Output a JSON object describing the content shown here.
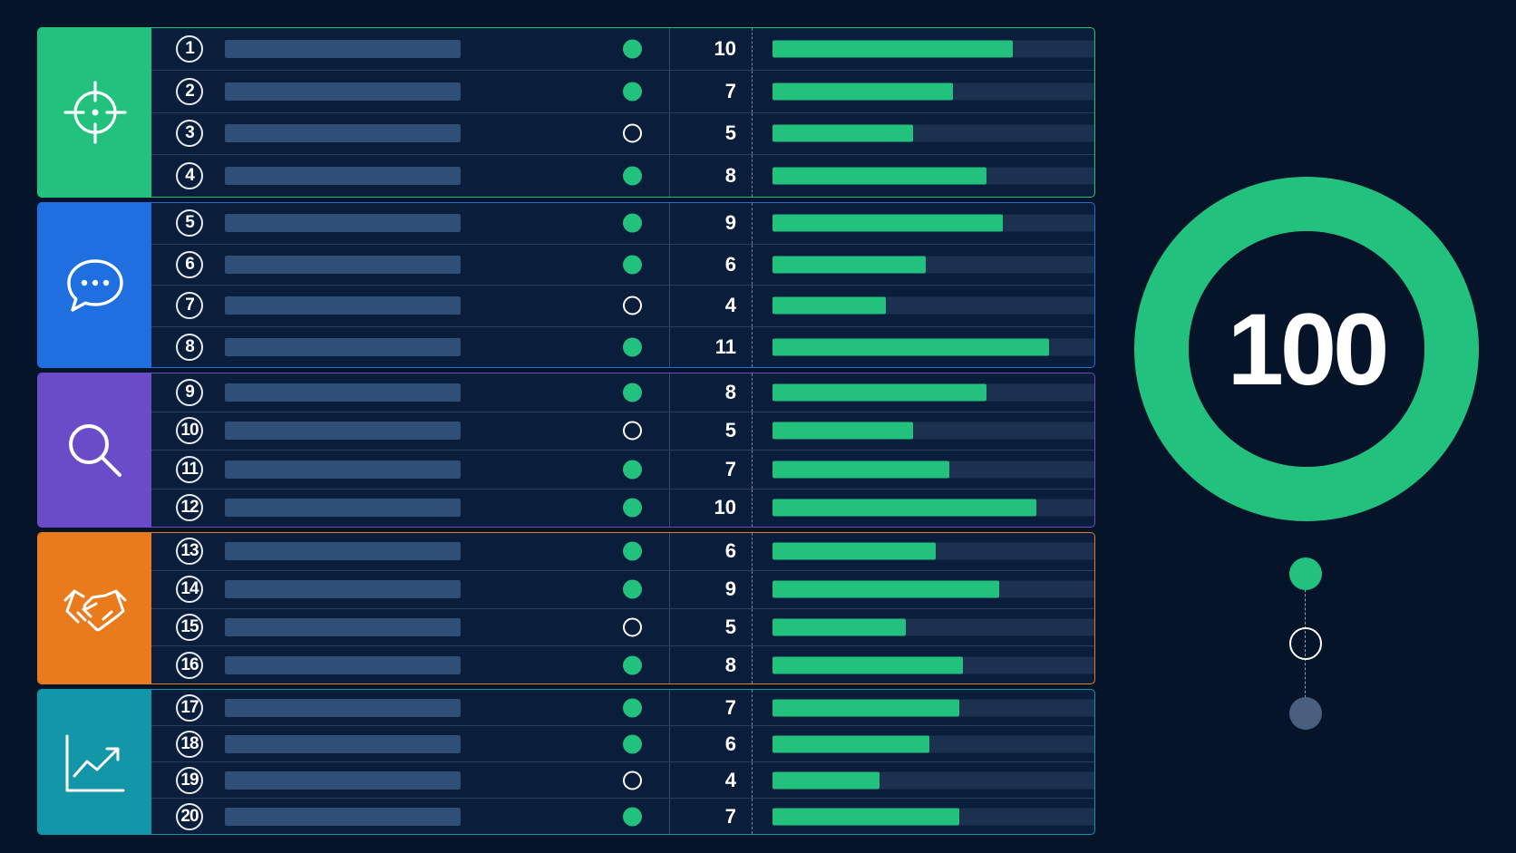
{
  "colors": {
    "background": "#06142a",
    "positive": "#22c27e",
    "groups": [
      "#22c27e",
      "#1f6fe0",
      "#6a4cc9",
      "#ea7b1c",
      "#1397a8"
    ]
  },
  "groups": [
    {
      "icon": "crosshair-icon",
      "rows": [
        {
          "num": "1",
          "active": true,
          "score": "10",
          "fill": 0.72
        },
        {
          "num": "2",
          "active": true,
          "score": "7",
          "fill": 0.54
        },
        {
          "num": "3",
          "active": false,
          "score": "5",
          "fill": 0.42
        },
        {
          "num": "4",
          "active": true,
          "score": "8",
          "fill": 0.64
        }
      ]
    },
    {
      "icon": "chat-bubble-icon",
      "rows": [
        {
          "num": "5",
          "active": true,
          "score": "9",
          "fill": 0.69
        },
        {
          "num": "6",
          "active": true,
          "score": "6",
          "fill": 0.46
        },
        {
          "num": "7",
          "active": false,
          "score": "4",
          "fill": 0.34
        },
        {
          "num": "8",
          "active": true,
          "score": "11",
          "fill": 0.83
        }
      ]
    },
    {
      "icon": "search-icon",
      "rows": [
        {
          "num": "9",
          "active": true,
          "score": "8",
          "fill": 0.64
        },
        {
          "num": "10",
          "active": false,
          "score": "5",
          "fill": 0.42
        },
        {
          "num": "11",
          "active": true,
          "score": "7",
          "fill": 0.53
        },
        {
          "num": "12",
          "active": true,
          "score": "10",
          "fill": 0.79
        }
      ]
    },
    {
      "icon": "handshake-icon",
      "rows": [
        {
          "num": "13",
          "active": true,
          "score": "6",
          "fill": 0.49
        },
        {
          "num": "14",
          "active": true,
          "score": "9",
          "fill": 0.68
        },
        {
          "num": "15",
          "active": false,
          "score": "5",
          "fill": 0.4
        },
        {
          "num": "16",
          "active": true,
          "score": "8",
          "fill": 0.57
        }
      ]
    },
    {
      "icon": "growth-chart-icon",
      "rows": [
        {
          "num": "17",
          "active": true,
          "score": "7",
          "fill": 0.56
        },
        {
          "num": "18",
          "active": true,
          "score": "6",
          "fill": 0.47
        },
        {
          "num": "19",
          "active": false,
          "score": "4",
          "fill": 0.32
        },
        {
          "num": "20",
          "active": true,
          "score": "7",
          "fill": 0.56
        }
      ]
    }
  ],
  "total": {
    "value": "100",
    "ring_fraction": 1.0
  },
  "progress_steps": [
    "complete",
    "current",
    "pending"
  ]
}
